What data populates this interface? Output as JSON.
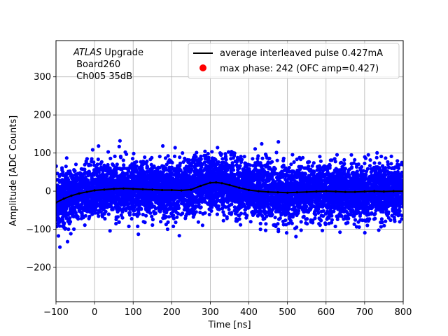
{
  "chart_data": {
    "type": "scatter",
    "xlabel": "Time [ns]",
    "ylabel": "Amplitude [ADC Counts]",
    "xlim": [
      -100,
      800
    ],
    "ylim": [
      -290,
      395
    ],
    "xticks": [
      -100,
      0,
      100,
      200,
      300,
      400,
      500,
      600,
      700,
      800
    ],
    "yticks": [
      -200,
      -100,
      0,
      100,
      200,
      300
    ],
    "ytick_labels": [
      "−200",
      "−100",
      "0",
      "100",
      "200",
      "300"
    ],
    "xtick_labels": [
      "−100",
      "0",
      "100",
      "200",
      "300",
      "400",
      "500",
      "600",
      "700",
      "800"
    ],
    "grid": true,
    "legend_position": "top-right",
    "annotation": {
      "line1_italic": "ATLAS",
      "line1_rest": " Upgrade",
      "line2": " Board260",
      "line3": " Ch005 35dB"
    },
    "series": [
      {
        "name": "average interleaved pulse 0.427mA",
        "kind": "line",
        "color": "#000000",
        "x": [
          -100,
          -80,
          -60,
          -40,
          -20,
          0,
          25,
          50,
          75,
          100,
          125,
          150,
          175,
          200,
          225,
          250,
          275,
          300,
          315,
          330,
          350,
          375,
          400,
          425,
          450,
          475,
          500,
          525,
          550,
          575,
          600,
          625,
          650,
          675,
          700,
          725,
          750,
          775,
          800
        ],
        "y": [
          -30,
          -20,
          -12,
          -6,
          -2,
          2,
          4,
          6,
          7,
          6,
          5,
          4,
          3,
          3,
          2,
          4,
          14,
          22,
          23,
          21,
          16,
          9,
          3,
          0,
          -2,
          -3,
          -4,
          -3,
          -2,
          -1,
          0,
          -1,
          -2,
          -2,
          -1,
          0,
          -1,
          0,
          0
        ]
      },
      {
        "name": "max phase: 242 (OFC amp=0.427)",
        "kind": "marker",
        "color": "#ff0000"
      },
      {
        "name": "samples",
        "kind": "scatter",
        "color": "#0000ff",
        "approx_center": 0,
        "approx_spread_std": 35,
        "approx_range": [
          -190,
          160
        ],
        "sample_count_rendered": 7000
      }
    ]
  }
}
